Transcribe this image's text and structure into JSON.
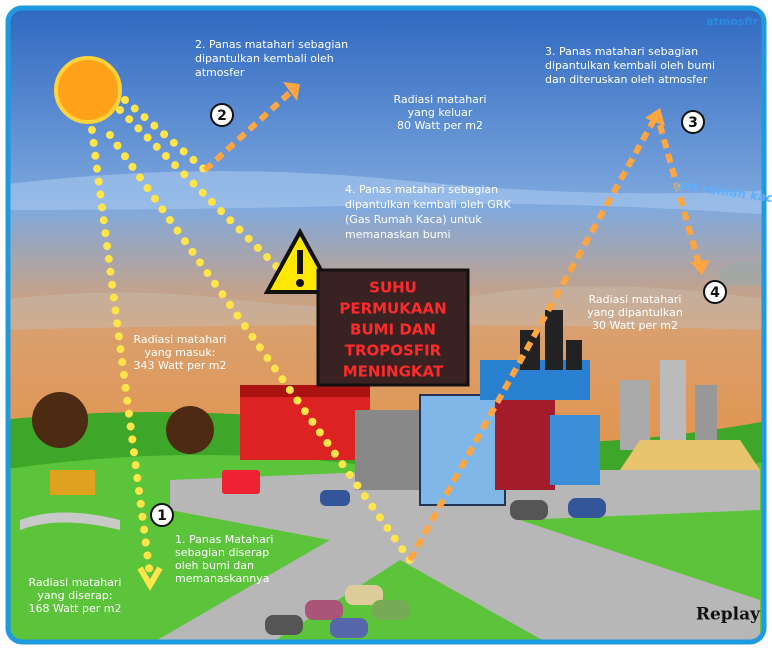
{
  "corner_label": "atmosfir",
  "gas_label": "gas rumah kaca",
  "warning": [
    "SUHU",
    "PERMUKAAN",
    "BUMI DAN",
    "TROPOSFIR",
    "MENINGKAT"
  ],
  "badges": [
    "1",
    "2",
    "3",
    "4"
  ],
  "notes": [
    {
      "lines": [
        "2. Panas matahari sebagian",
        "dipantulkan kembali oleh",
        "atmosfer"
      ]
    },
    {
      "lines": [
        "Radiasi matahari",
        "yang keluar",
        "80 Watt per m2"
      ]
    },
    {
      "lines": [
        "3. Panas matahari sebagian",
        "dipantulkan kembali oleh bumi",
        "dan diteruskan oleh atmosfer"
      ]
    },
    {
      "lines": [
        "4. Panas matahari sebagian",
        "dipantulkan kembali oleh GRK",
        "(Gas Rumah Kaca) untuk",
        "memanaskan bumi"
      ]
    },
    {
      "lines": [
        "Radiasi matahari",
        "yang dipantulkan",
        "30 Watt per m2"
      ]
    },
    {
      "lines": [
        "Radiasi matahari",
        "yang masuk:",
        "343 Watt per m2"
      ]
    },
    {
      "lines": [
        "1. Panas Matahari",
        "sebagian diserap",
        "oleh bumi dan",
        "memanaskannya"
      ]
    },
    {
      "lines": [
        "Radiasi matahari",
        "yang diserap:",
        "168 Watt per m2"
      ]
    }
  ],
  "replay": "Replay"
}
